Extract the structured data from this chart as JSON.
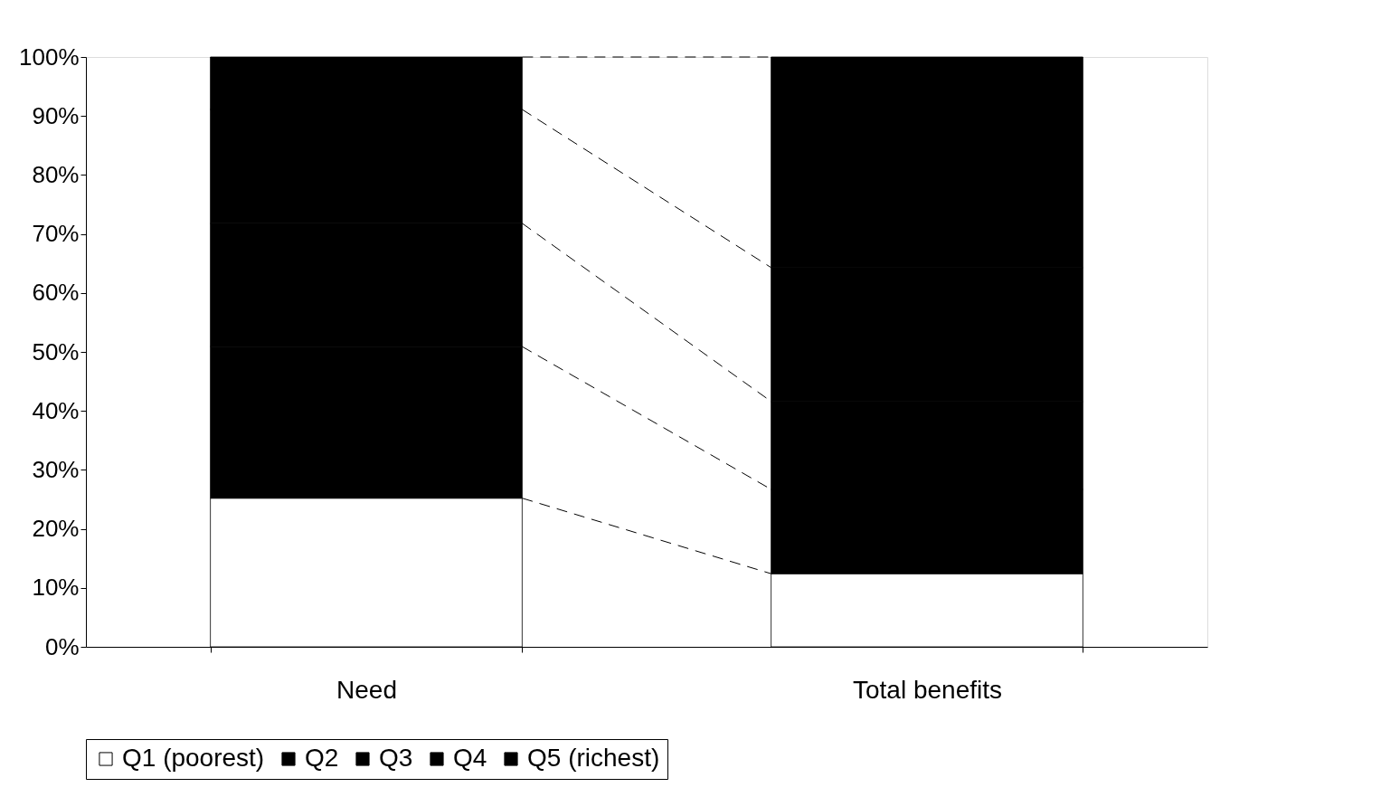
{
  "chart_data": {
    "type": "bar",
    "stacked": true,
    "categories": [
      "Need",
      "Total benefits"
    ],
    "series": [
      {
        "name": "Q1 (poorest)",
        "color": "#ffffff",
        "values": [
          25.2,
          12.4
        ]
      },
      {
        "name": "Q2",
        "color": "#000000",
        "values": [
          25.7,
          14.3
        ]
      },
      {
        "name": "Q3",
        "color": "#000000",
        "values": [
          20.9,
          14.9
        ]
      },
      {
        "name": "Q4",
        "color": "#000000",
        "values": [
          19.3,
          22.7
        ]
      },
      {
        "name": "Q5 (richest)",
        "color": "#000000",
        "values": [
          8.9,
          35.7
        ]
      }
    ],
    "ylim": [
      0,
      100
    ],
    "yticks": [
      {
        "value": 0,
        "label": "0%"
      },
      {
        "value": 10,
        "label": "10%"
      },
      {
        "value": 20,
        "label": "20%"
      },
      {
        "value": 30,
        "label": "30%"
      },
      {
        "value": 40,
        "label": "40%"
      },
      {
        "value": 50,
        "label": "50%"
      },
      {
        "value": 60,
        "label": "60%"
      },
      {
        "value": 70,
        "label": "70%"
      },
      {
        "value": 80,
        "label": "80%"
      },
      {
        "value": 90,
        "label": "90%"
      },
      {
        "value": 100,
        "label": "100%"
      }
    ],
    "legend": "bottom",
    "line_style": "dashed"
  }
}
